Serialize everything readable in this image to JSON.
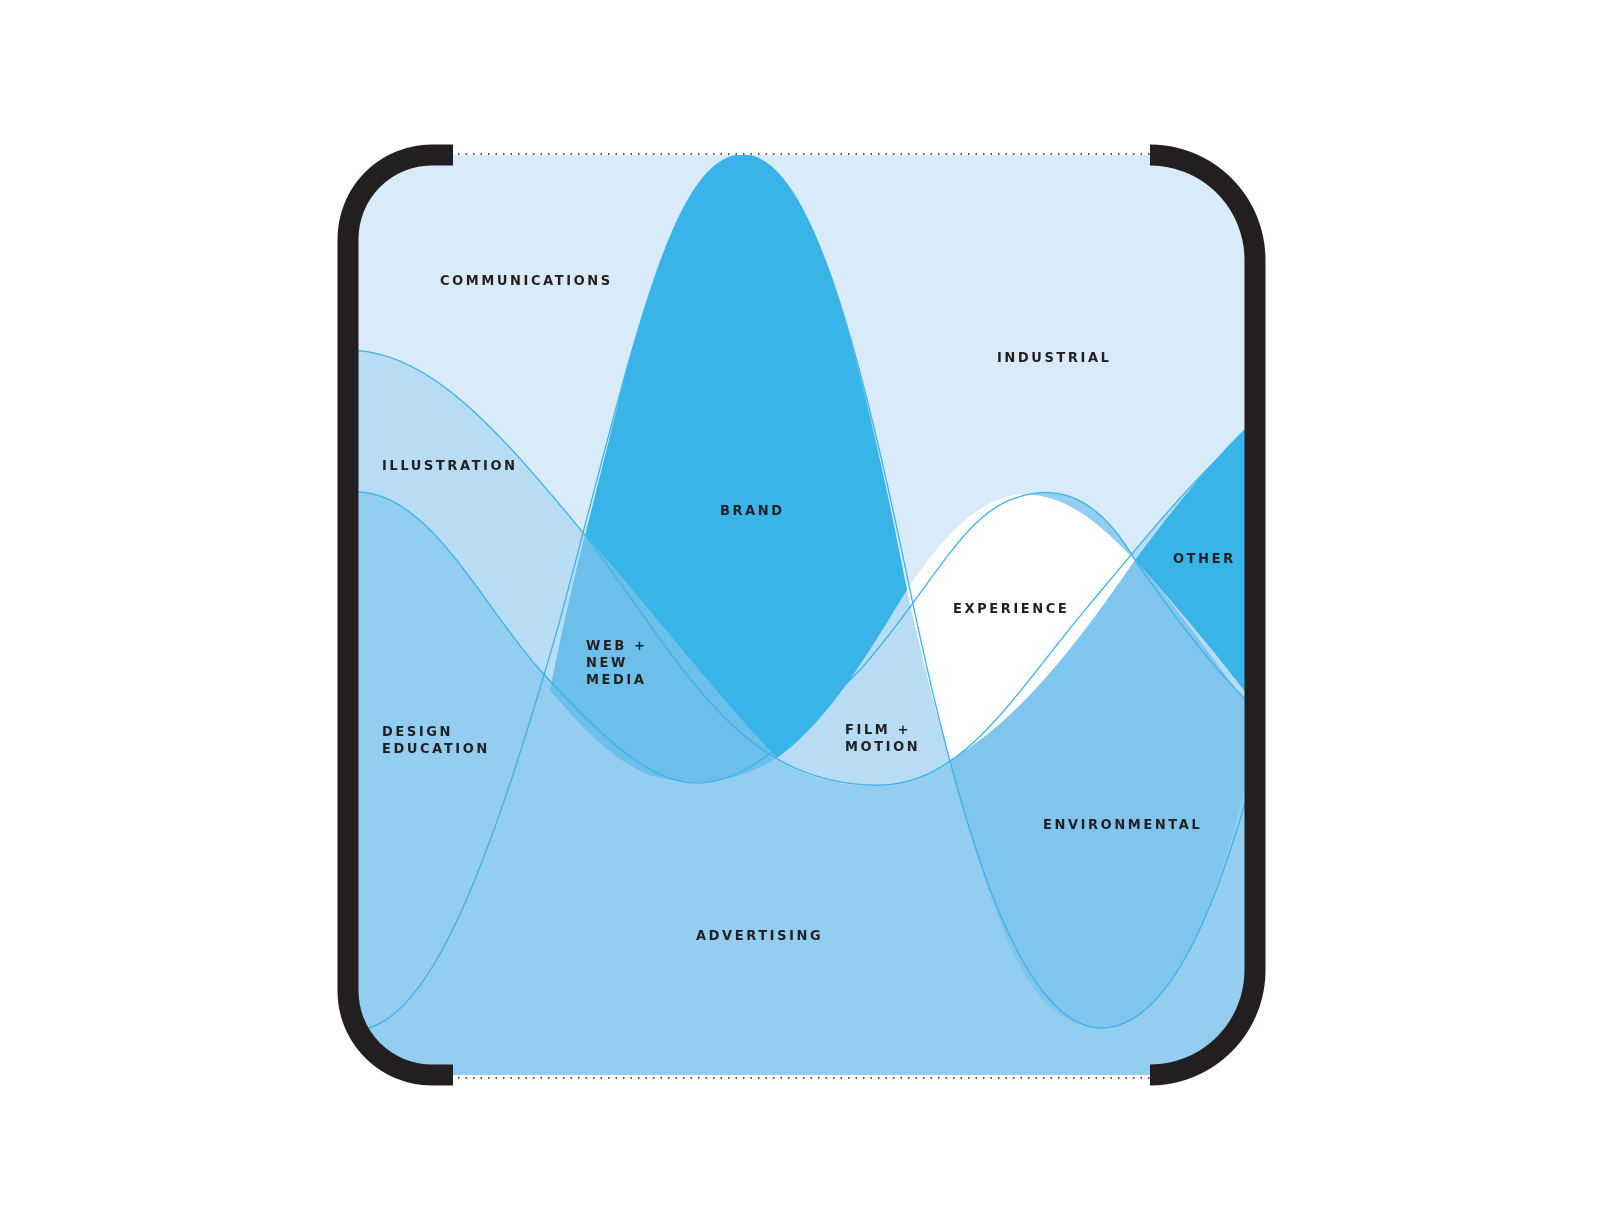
{
  "colors": {
    "background": "#ffffff",
    "panel": "#d9ebf8",
    "brand": "#39b4e8",
    "other": "#39b4e8",
    "illustration": "#b7dcf3",
    "design_education": "#93cdef",
    "web_new_media": "#6cbfea",
    "environmental": "#80c5ee",
    "film_motion": "#b7dcf3",
    "experience": "#ffffff",
    "stroke": "#39b4e8",
    "frame": "#231f20"
  },
  "labels": {
    "communications": "COMMUNICATIONS",
    "industrial": "INDUSTRIAL",
    "illustration": "ILLUSTRATION",
    "brand": "BRAND",
    "other": "OTHER",
    "experience": "EXPERIENCE",
    "web_new_media": [
      "WEB +",
      "NEW",
      "MEDIA"
    ],
    "film_motion": [
      "FILM +",
      "MOTION"
    ],
    "design_education": [
      "DESIGN",
      "EDUCATION"
    ],
    "environmental": "ENVIRONMENTAL",
    "advertising": "ADVERTISING"
  }
}
